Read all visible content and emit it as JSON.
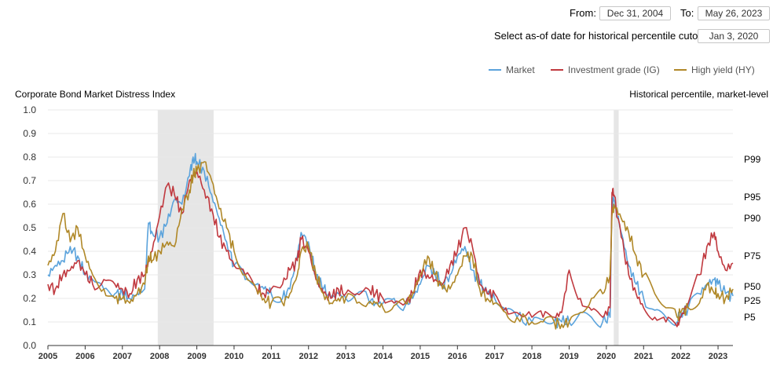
{
  "controls": {
    "from_label": "From:",
    "from_value": "Dec 31, 2004",
    "to_label": "To:",
    "to_value": "May 26, 2023",
    "asof_label": "Select as-of date for historical percentile cutoffs:",
    "asof_value": "Jan 3, 2020"
  },
  "colors": {
    "market": "#5ba3dc",
    "ig": "#c0393f",
    "hy": "#b08828",
    "recession": "#e6e6e6",
    "grid": "#e8e8e8"
  },
  "chart_data": {
    "type": "line",
    "title": "Corporate Bond Market Distress Index",
    "right_axis_title": "Historical percentile, market-level",
    "xlim": [
      2005,
      2023.4
    ],
    "ylim": [
      0,
      1
    ],
    "yticks": [
      "0.0",
      "0.1",
      "0.2",
      "0.3",
      "0.4",
      "0.5",
      "0.6",
      "0.7",
      "0.8",
      "0.9",
      "1.0"
    ],
    "xticks": [
      "2005",
      "2006",
      "2007",
      "2008",
      "2009",
      "2010",
      "2011",
      "2012",
      "2013",
      "2014",
      "2015",
      "2016",
      "2017",
      "2018",
      "2019",
      "2020",
      "2021",
      "2022",
      "2023"
    ],
    "percentiles": [
      {
        "label": "P99",
        "value": 0.79
      },
      {
        "label": "P95",
        "value": 0.63
      },
      {
        "label": "P90",
        "value": 0.54
      },
      {
        "label": "P75",
        "value": 0.38
      },
      {
        "label": "P50",
        "value": 0.25
      },
      {
        "label": "P25",
        "value": 0.19
      },
      {
        "label": "P5",
        "value": 0.12
      }
    ],
    "recessions": [
      [
        2007.95,
        2009.45
      ],
      [
        2020.2,
        2020.33
      ]
    ],
    "legend_position": "top-right",
    "grid": true,
    "series": [
      {
        "name": "Market",
        "color": "#5ba3dc",
        "x": [
          2005.0,
          2005.2,
          2005.4,
          2005.6,
          2005.8,
          2006.0,
          2006.2,
          2006.5,
          2006.8,
          2007.0,
          2007.2,
          2007.4,
          2007.6,
          2007.7,
          2007.8,
          2008.0,
          2008.2,
          2008.4,
          2008.6,
          2008.8,
          2008.9,
          2009.0,
          2009.2,
          2009.4,
          2009.6,
          2009.8,
          2010.0,
          2010.3,
          2010.6,
          2010.8,
          2011.0,
          2011.3,
          2011.5,
          2011.7,
          2011.8,
          2012.0,
          2012.2,
          2012.4,
          2012.6,
          2012.8,
          2013.0,
          2013.3,
          2013.6,
          2013.8,
          2014.0,
          2014.3,
          2014.6,
          2014.8,
          2015.0,
          2015.2,
          2015.4,
          2015.6,
          2015.8,
          2016.0,
          2016.2,
          2016.4,
          2016.6,
          2016.8,
          2017.0,
          2017.3,
          2017.6,
          2018.0,
          2018.3,
          2018.6,
          2018.8,
          2019.0,
          2019.3,
          2019.6,
          2019.9,
          2020.1,
          2020.15,
          2020.2,
          2020.4,
          2020.6,
          2020.8,
          2021.0,
          2021.3,
          2021.6,
          2021.9,
          2022.0,
          2022.2,
          2022.5,
          2022.7,
          2022.9,
          2023.0,
          2023.2,
          2023.4
        ],
        "y": [
          0.3,
          0.34,
          0.36,
          0.42,
          0.38,
          0.3,
          0.28,
          0.24,
          0.22,
          0.22,
          0.2,
          0.22,
          0.24,
          0.52,
          0.48,
          0.46,
          0.52,
          0.62,
          0.6,
          0.72,
          0.8,
          0.78,
          0.74,
          0.64,
          0.54,
          0.44,
          0.34,
          0.28,
          0.26,
          0.24,
          0.22,
          0.2,
          0.24,
          0.38,
          0.48,
          0.44,
          0.3,
          0.24,
          0.2,
          0.22,
          0.2,
          0.22,
          0.2,
          0.18,
          0.18,
          0.2,
          0.17,
          0.2,
          0.26,
          0.34,
          0.3,
          0.26,
          0.3,
          0.38,
          0.42,
          0.32,
          0.26,
          0.22,
          0.2,
          0.15,
          0.12,
          0.1,
          0.11,
          0.1,
          0.1,
          0.1,
          0.14,
          0.12,
          0.1,
          0.12,
          0.6,
          0.62,
          0.48,
          0.34,
          0.26,
          0.2,
          0.15,
          0.12,
          0.1,
          0.14,
          0.16,
          0.22,
          0.26,
          0.28,
          0.26,
          0.22,
          0.21
        ]
      },
      {
        "name": "Investment grade (IG)",
        "color": "#c0393f",
        "x": [
          2005.0,
          2005.2,
          2005.4,
          2005.6,
          2005.8,
          2006.0,
          2006.2,
          2006.5,
          2006.8,
          2007.0,
          2007.2,
          2007.4,
          2007.6,
          2007.7,
          2007.8,
          2008.0,
          2008.2,
          2008.4,
          2008.6,
          2008.8,
          2008.9,
          2009.0,
          2009.2,
          2009.4,
          2009.6,
          2009.8,
          2010.0,
          2010.3,
          2010.6,
          2010.8,
          2011.0,
          2011.3,
          2011.5,
          2011.7,
          2011.8,
          2012.0,
          2012.2,
          2012.4,
          2012.6,
          2012.8,
          2013.0,
          2013.3,
          2013.6,
          2013.8,
          2014.0,
          2014.3,
          2014.6,
          2014.8,
          2015.0,
          2015.2,
          2015.4,
          2015.6,
          2015.8,
          2016.0,
          2016.2,
          2016.4,
          2016.6,
          2016.8,
          2017.0,
          2017.3,
          2017.6,
          2018.0,
          2018.3,
          2018.6,
          2018.8,
          2019.0,
          2019.3,
          2019.6,
          2019.9,
          2020.1,
          2020.15,
          2020.2,
          2020.4,
          2020.6,
          2020.8,
          2021.0,
          2021.3,
          2021.6,
          2021.9,
          2022.0,
          2022.2,
          2022.5,
          2022.7,
          2022.9,
          2023.0,
          2023.2,
          2023.4
        ],
        "y": [
          0.26,
          0.24,
          0.3,
          0.32,
          0.36,
          0.3,
          0.26,
          0.28,
          0.26,
          0.24,
          0.22,
          0.28,
          0.3,
          0.36,
          0.4,
          0.55,
          0.68,
          0.64,
          0.56,
          0.7,
          0.72,
          0.74,
          0.66,
          0.58,
          0.46,
          0.4,
          0.34,
          0.3,
          0.24,
          0.22,
          0.24,
          0.26,
          0.32,
          0.36,
          0.45,
          0.4,
          0.28,
          0.22,
          0.2,
          0.24,
          0.22,
          0.22,
          0.24,
          0.22,
          0.2,
          0.18,
          0.18,
          0.22,
          0.32,
          0.3,
          0.28,
          0.26,
          0.34,
          0.4,
          0.5,
          0.42,
          0.26,
          0.22,
          0.22,
          0.16,
          0.14,
          0.12,
          0.12,
          0.12,
          0.14,
          0.32,
          0.2,
          0.15,
          0.12,
          0.16,
          0.65,
          0.64,
          0.46,
          0.3,
          0.22,
          0.16,
          0.12,
          0.1,
          0.08,
          0.12,
          0.18,
          0.3,
          0.42,
          0.48,
          0.4,
          0.32,
          0.35
        ]
      },
      {
        "name": "High yield (HY)",
        "color": "#b08828",
        "x": [
          2005.0,
          2005.2,
          2005.4,
          2005.6,
          2005.8,
          2006.0,
          2006.2,
          2006.5,
          2006.8,
          2007.0,
          2007.2,
          2007.4,
          2007.6,
          2007.7,
          2007.8,
          2008.0,
          2008.2,
          2008.4,
          2008.6,
          2008.8,
          2008.9,
          2009.0,
          2009.2,
          2009.4,
          2009.6,
          2009.8,
          2010.0,
          2010.3,
          2010.6,
          2010.8,
          2011.0,
          2011.3,
          2011.5,
          2011.7,
          2011.8,
          2012.0,
          2012.2,
          2012.4,
          2012.6,
          2012.8,
          2013.0,
          2013.3,
          2013.6,
          2013.8,
          2014.0,
          2014.3,
          2014.6,
          2014.8,
          2015.0,
          2015.2,
          2015.4,
          2015.6,
          2015.8,
          2016.0,
          2016.2,
          2016.4,
          2016.6,
          2016.8,
          2017.0,
          2017.3,
          2017.6,
          2018.0,
          2018.3,
          2018.6,
          2018.8,
          2019.0,
          2019.3,
          2019.6,
          2019.9,
          2020.1,
          2020.15,
          2020.2,
          2020.4,
          2020.6,
          2020.8,
          2021.0,
          2021.3,
          2021.6,
          2021.9,
          2022.0,
          2022.2,
          2022.5,
          2022.7,
          2022.9,
          2023.0,
          2023.2,
          2023.4
        ],
        "y": [
          0.34,
          0.4,
          0.56,
          0.44,
          0.5,
          0.38,
          0.3,
          0.24,
          0.2,
          0.2,
          0.18,
          0.22,
          0.26,
          0.38,
          0.36,
          0.4,
          0.44,
          0.42,
          0.58,
          0.66,
          0.72,
          0.74,
          0.78,
          0.7,
          0.58,
          0.5,
          0.4,
          0.3,
          0.24,
          0.2,
          0.18,
          0.18,
          0.22,
          0.3,
          0.4,
          0.42,
          0.3,
          0.22,
          0.18,
          0.2,
          0.2,
          0.18,
          0.18,
          0.18,
          0.16,
          0.17,
          0.18,
          0.22,
          0.3,
          0.38,
          0.3,
          0.24,
          0.24,
          0.3,
          0.38,
          0.38,
          0.24,
          0.2,
          0.18,
          0.14,
          0.12,
          0.1,
          0.1,
          0.1,
          0.09,
          0.1,
          0.14,
          0.2,
          0.22,
          0.3,
          0.55,
          0.6,
          0.54,
          0.48,
          0.38,
          0.3,
          0.22,
          0.16,
          0.12,
          0.14,
          0.16,
          0.18,
          0.26,
          0.22,
          0.22,
          0.2,
          0.24
        ]
      }
    ]
  }
}
